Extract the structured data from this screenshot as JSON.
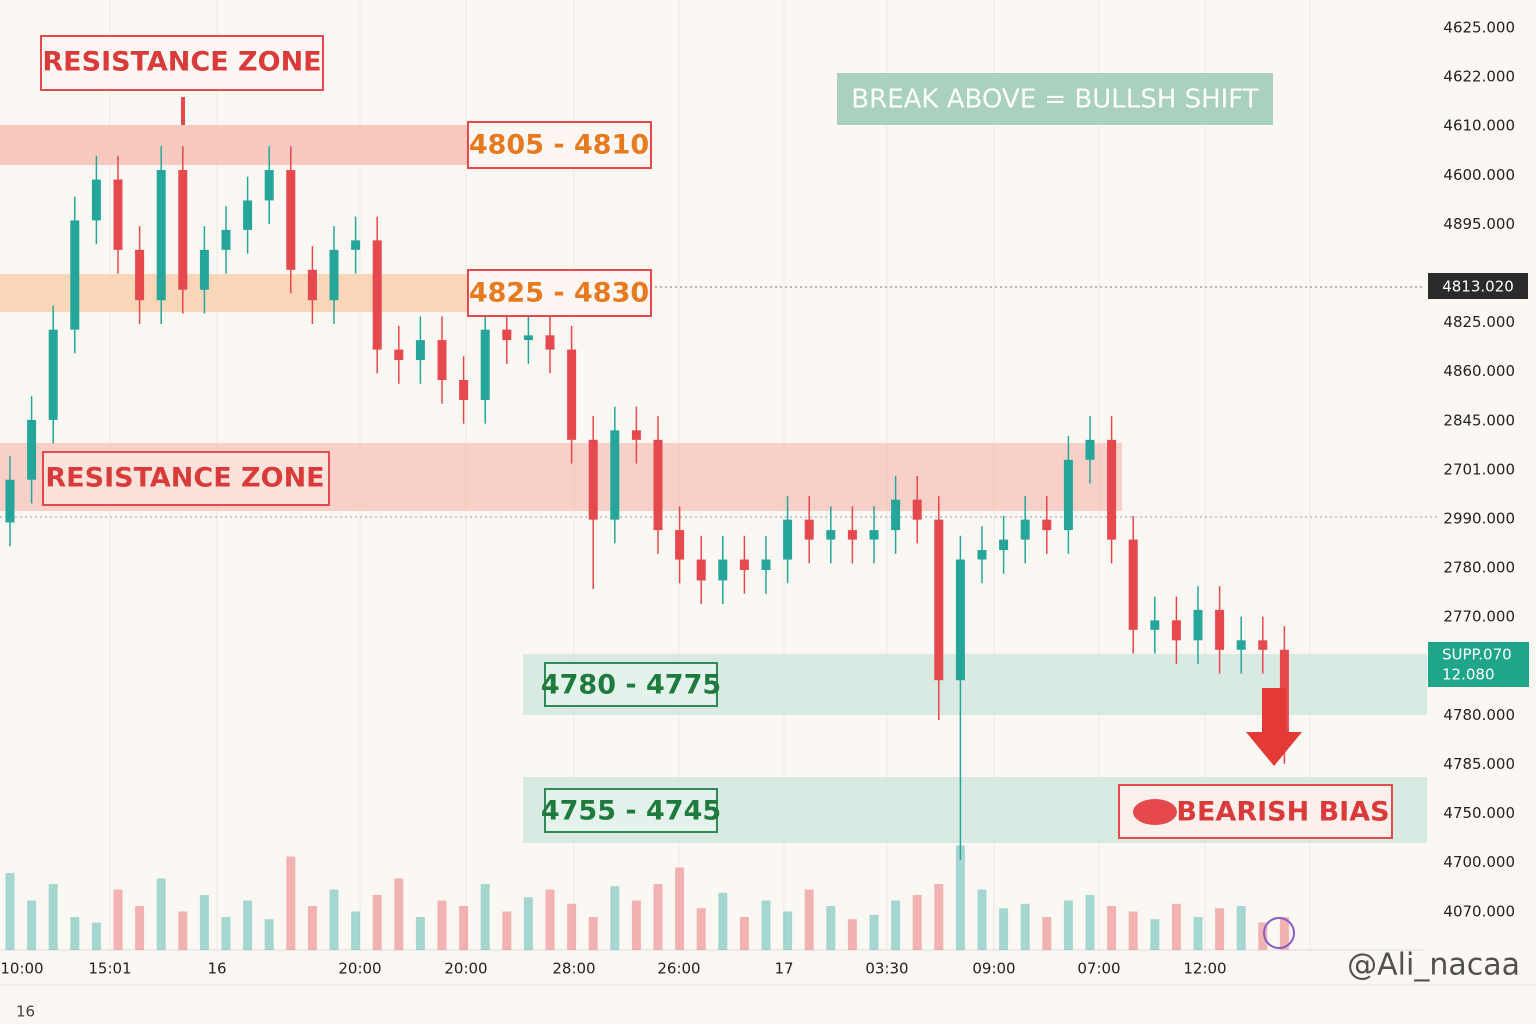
{
  "chart_data": {
    "type": "candlestick",
    "ylim": [
      0,
      100
    ],
    "volume_lim": [
      0,
      100
    ],
    "up_color": "#26a69a",
    "down_color": "#e5484d",
    "open": [
      45.0,
      49.5,
      55.8,
      65.3,
      76.8,
      81.1,
      73.7,
      68.4,
      82.1,
      69.5,
      73.7,
      75.8,
      78.9,
      82.1,
      71.6,
      68.4,
      73.7,
      74.7,
      63.2,
      62.1,
      64.2,
      60.0,
      57.9,
      65.3,
      64.2,
      64.7,
      63.2,
      53.7,
      45.3,
      54.7,
      53.7,
      44.2,
      41.1,
      38.9,
      41.1,
      40.0,
      41.1,
      45.3,
      43.2,
      44.2,
      43.2,
      44.2,
      47.4,
      45.3,
      28.4,
      41.1,
      42.1,
      43.2,
      45.3,
      44.2,
      51.6,
      53.7,
      43.2,
      33.7,
      34.7,
      32.6,
      35.8,
      31.6,
      32.6,
      31.6
    ],
    "high": [
      52,
      58.3,
      67.8,
      79.3,
      83.6,
      83.6,
      76.2,
      84.6,
      84.6,
      76.2,
      78.3,
      81.4,
      84.6,
      84.6,
      74.1,
      76.2,
      77.2,
      77.2,
      65.7,
      66.7,
      66.7,
      62.5,
      67.8,
      67.8,
      67.2,
      67.2,
      65.7,
      56.2,
      57.2,
      57.2,
      56.2,
      46.7,
      43.6,
      43.6,
      43.6,
      43.6,
      47.8,
      47.8,
      46.7,
      46.7,
      46.7,
      49.9,
      49.9,
      47.8,
      43.6,
      44.6,
      45.7,
      47.8,
      47.8,
      54.1,
      56.2,
      56.2,
      45.7,
      37.2,
      37.2,
      38.3,
      38.3,
      35.1,
      35.1,
      34.1
    ],
    "low": [
      42.5,
      47,
      53.3,
      62.8,
      74.3,
      71.2,
      65.9,
      65.9,
      67,
      67,
      71.2,
      73.3,
      76.4,
      69.1,
      65.9,
      65.9,
      71.2,
      60.7,
      59.6,
      59.6,
      57.5,
      55.4,
      55.4,
      61.7,
      61.7,
      60.7,
      51.2,
      38,
      42.8,
      51.2,
      41.7,
      38.6,
      36.4,
      36.4,
      37.5,
      37.5,
      38.6,
      40.7,
      40.7,
      40.7,
      40.7,
      41.7,
      42.8,
      24.2,
      9.5,
      38.6,
      39.6,
      40.7,
      41.7,
      41.7,
      49.1,
      40.7,
      31.2,
      31.2,
      30.1,
      30.1,
      29.1,
      29.1,
      29.1,
      19.6
    ],
    "close": [
      49.5,
      55.8,
      65.3,
      76.8,
      81.1,
      73.7,
      68.4,
      82.1,
      69.5,
      73.7,
      75.8,
      78.9,
      82.1,
      71.6,
      68.4,
      73.7,
      74.7,
      63.2,
      62.1,
      64.2,
      60.0,
      57.9,
      65.3,
      64.2,
      64.7,
      63.2,
      53.7,
      45.3,
      54.7,
      53.7,
      44.2,
      41.1,
      38.9,
      41.1,
      40.0,
      41.1,
      45.3,
      43.2,
      44.2,
      43.2,
      44.2,
      47.4,
      45.3,
      28.4,
      41.1,
      42.1,
      43.2,
      45.3,
      44.2,
      51.6,
      53.7,
      43.2,
      33.7,
      34.7,
      32.6,
      35.8,
      31.6,
      32.6,
      31.6,
      22.1
    ],
    "volume": [
      70,
      45,
      60,
      30,
      25,
      55,
      40,
      65,
      35,
      50,
      30,
      45,
      28,
      85,
      40,
      55,
      35,
      50,
      65,
      30,
      45,
      40,
      60,
      35,
      48,
      55,
      42,
      30,
      58,
      45,
      60,
      75,
      38,
      52,
      30,
      45,
      35,
      55,
      40,
      28,
      32,
      45,
      50,
      60,
      95,
      55,
      38,
      42,
      30,
      45,
      50,
      40,
      35,
      28,
      42,
      30,
      38,
      40,
      25,
      30
    ],
    "price_labels": [
      "4625.000",
      "4622.000",
      "4610.000",
      "4600.000",
      "4895.000",
      "4825.000",
      "4860.000",
      "2845.000",
      "2701.000",
      "2990.000",
      "2780.000",
      "2770.000",
      "4780.000",
      "4785.000",
      "4750.000",
      "4700.000",
      "4070.000"
    ],
    "time_labels": [
      "10:00",
      "15:01",
      "16",
      "20:00",
      "20:00",
      "28:00",
      "26:00",
      "17",
      "03:30",
      "09:00",
      "07:00",
      "12:00"
    ],
    "corner_label": "16",
    "last_price": "4813.020",
    "support_label": [
      "SUPP.070",
      "12.080"
    ],
    "annotations": {
      "resistance_top": "RESISTANCE ZONE",
      "zone_4805": "4805 - 4810",
      "zone_4825": "4825 - 4830",
      "break_above": "BREAK ABOVE = BULLSH SHIFT",
      "resistance_mid": "RESISTANCE ZONE",
      "zone_4780": "4780 - 4775",
      "zone_4755": "4755 - 4745",
      "bearish": "BEARISH BIAS"
    },
    "watermark": "@Ali_nacaa"
  }
}
